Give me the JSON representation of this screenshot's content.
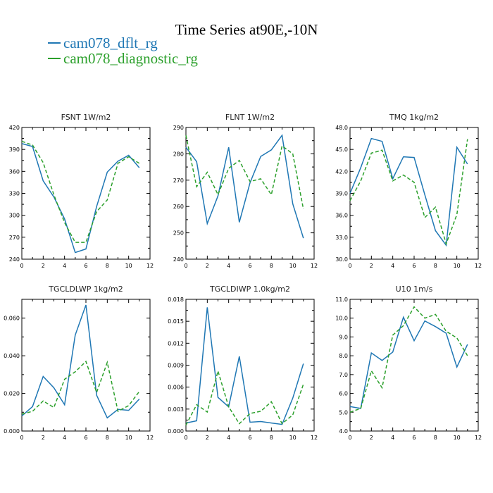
{
  "title": "Time Series at90E,-10N",
  "legend": [
    {
      "label": "cam078_dflt_rg",
      "color": "#1f77b4",
      "dash": "solid"
    },
    {
      "label": "cam078_diagnostic_rg",
      "color": "#2ca02c",
      "dash": "dashed"
    }
  ],
  "chart_data": [
    {
      "type": "line",
      "title": "FSNT   1W/m2",
      "x": [
        0,
        1,
        2,
        3,
        4,
        5,
        6,
        7,
        8,
        9,
        10,
        11
      ],
      "xlim": [
        0,
        12
      ],
      "xticks": [
        "0",
        "2",
        "4",
        "6",
        "8",
        "10",
        "12"
      ],
      "ylim": [
        240,
        420
      ],
      "yticks": [
        "240",
        "270",
        "300",
        "330",
        "360",
        "390",
        "420"
      ],
      "series": [
        {
          "name": "cam078_dflt_rg",
          "values": [
            398,
            394,
            347,
            325,
            295,
            249,
            254,
            312,
            359,
            374,
            382,
            365
          ]
        },
        {
          "name": "cam078_diagnostic_rg",
          "values": [
            401,
            396,
            372,
            328,
            290,
            263,
            263,
            305,
            321,
            371,
            380,
            371
          ]
        }
      ]
    },
    {
      "type": "line",
      "title": "FLNT   1W/m2",
      "x": [
        0,
        1,
        2,
        3,
        4,
        5,
        6,
        7,
        8,
        9,
        10,
        11
      ],
      "xlim": [
        0,
        12
      ],
      "xticks": [
        "0",
        "2",
        "4",
        "6",
        "8",
        "10",
        "12"
      ],
      "ylim": [
        240,
        290
      ],
      "yticks": [
        "240",
        "250",
        "260",
        "270",
        "280",
        "290"
      ],
      "series": [
        {
          "name": "cam078_dflt_rg",
          "values": [
            282.5,
            277,
            253.5,
            264,
            282.5,
            254,
            269,
            279,
            281.5,
            287,
            261,
            248
          ]
        },
        {
          "name": "cam078_diagnostic_rg",
          "values": [
            287,
            267.5,
            273,
            264.5,
            274.5,
            277.5,
            269.5,
            270.5,
            264.5,
            283,
            280,
            259
          ]
        }
      ]
    },
    {
      "type": "line",
      "title": "TMQ   1kg/m2",
      "x": [
        0,
        1,
        2,
        3,
        4,
        5,
        6,
        7,
        8,
        9,
        10,
        11
      ],
      "xlim": [
        0,
        12
      ],
      "xticks": [
        "0",
        "2",
        "4",
        "6",
        "8",
        "10",
        "12"
      ],
      "ylim": [
        30.0,
        48.0
      ],
      "yticks": [
        "30.0",
        "33.0",
        "36.0",
        "39.0",
        "42.0",
        "45.0",
        "48.0"
      ],
      "series": [
        {
          "name": "cam078_dflt_rg",
          "values": [
            39.0,
            42.5,
            46.5,
            46.1,
            41.0,
            44.0,
            43.9,
            38.8,
            33.9,
            31.9,
            45.3,
            43.0
          ]
        },
        {
          "name": "cam078_diagnostic_rg",
          "values": [
            38.0,
            40.7,
            44.5,
            44.9,
            40.7,
            41.5,
            40.5,
            35.7,
            37.1,
            32.1,
            36.1,
            46.4
          ]
        }
      ]
    },
    {
      "type": "line",
      "title": "TGCLDLWP   1kg/m2",
      "x": [
        0,
        1,
        2,
        3,
        4,
        5,
        6,
        7,
        8,
        9,
        10,
        11
      ],
      "xlim": [
        0,
        12
      ],
      "xticks": [
        "0",
        "2",
        "4",
        "6",
        "8",
        "10",
        "12"
      ],
      "ylim": [
        0.0,
        0.07
      ],
      "yticks": [
        "0.000",
        "0.020",
        "0.040",
        "0.060"
      ],
      "ytickvals": [
        0.0,
        0.02,
        0.04,
        0.06
      ],
      "series": [
        {
          "name": "cam078_dflt_rg",
          "values": [
            0.008,
            0.013,
            0.029,
            0.023,
            0.014,
            0.051,
            0.067,
            0.019,
            0.007,
            0.0115,
            0.011,
            0.017
          ]
        },
        {
          "name": "cam078_diagnostic_rg",
          "values": [
            0.009,
            0.0105,
            0.016,
            0.0125,
            0.0275,
            0.0315,
            0.037,
            0.0205,
            0.0365,
            0.0105,
            0.0135,
            0.021
          ]
        }
      ]
    },
    {
      "type": "line",
      "title": "TGCLDIWP   1.0kg/m2",
      "x": [
        0,
        1,
        2,
        3,
        4,
        5,
        6,
        7,
        8,
        9,
        10,
        11
      ],
      "xlim": [
        0,
        12
      ],
      "xticks": [
        "0",
        "2",
        "4",
        "6",
        "8",
        "10",
        "12"
      ],
      "ylim": [
        0.0,
        0.018
      ],
      "yticks": [
        "0.000",
        "0.003",
        "0.006",
        "0.009",
        "0.012",
        "0.015",
        "0.018"
      ],
      "series": [
        {
          "name": "cam078_dflt_rg",
          "values": [
            0.0011,
            0.0014,
            0.0169,
            0.0046,
            0.0033,
            0.0102,
            0.0012,
            0.0013,
            0.0011,
            0.0009,
            0.0045,
            0.0092
          ]
        },
        {
          "name": "cam078_diagnostic_rg",
          "values": [
            0.0008,
            0.0036,
            0.0026,
            0.0082,
            0.0033,
            0.001,
            0.0024,
            0.0027,
            0.004,
            0.001,
            0.0022,
            0.0064
          ]
        }
      ]
    },
    {
      "type": "line",
      "title": "U10   1m/s",
      "x": [
        0,
        1,
        2,
        3,
        4,
        5,
        6,
        7,
        8,
        9,
        10,
        11
      ],
      "xlim": [
        0,
        12
      ],
      "xticks": [
        "0",
        "2",
        "4",
        "6",
        "8",
        "10",
        "12"
      ],
      "ylim": [
        4.0,
        11.0
      ],
      "yticks": [
        "4.0",
        "5.0",
        "6.0",
        "7.0",
        "8.0",
        "9.0",
        "10.0",
        "11.0"
      ],
      "series": [
        {
          "name": "cam078_dflt_rg",
          "values": [
            5.3,
            5.2,
            8.15,
            7.75,
            8.2,
            10.05,
            8.8,
            9.85,
            9.55,
            9.2,
            7.4,
            8.6
          ]
        },
        {
          "name": "cam078_diagnostic_rg",
          "values": [
            5.0,
            5.2,
            7.2,
            6.3,
            9.1,
            9.6,
            10.6,
            10.0,
            10.2,
            9.3,
            8.95,
            8.0
          ]
        }
      ]
    }
  ]
}
